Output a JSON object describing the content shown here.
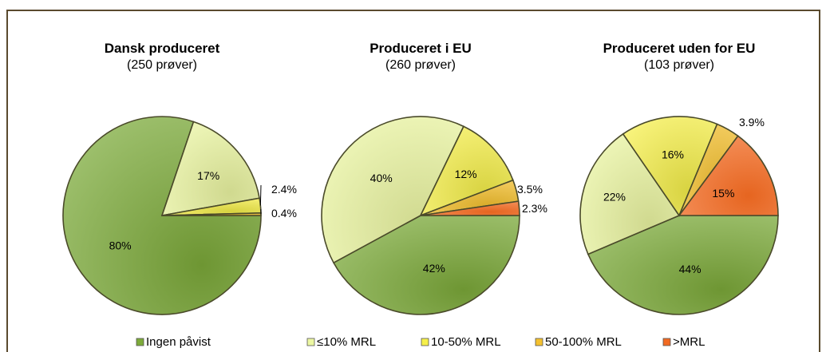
{
  "colors": {
    "frame": "#5a4a2e",
    "slice_stroke": "#4a4a2a",
    "ingen": "#7dab3a",
    "le10": "#ecf7a2",
    "p10_50": "#f6f04a",
    "p50_100": "#f5c12e",
    "gtMRL": "#f26a22"
  },
  "legend": {
    "items": [
      {
        "label": "Ingen påvist",
        "color": "#7dab3a"
      },
      {
        "label": "≤10% MRL",
        "color": "#ecf7a2"
      },
      {
        "label": "10-50% MRL",
        "color": "#f6f04a"
      },
      {
        "label": "50-100% MRL",
        "color": "#f5c12e"
      },
      {
        "label": ">MRL",
        "color": "#f26a22"
      }
    ],
    "placement": "bottom"
  },
  "chart_data": [
    {
      "type": "pie",
      "title": "Dansk produceret",
      "subtitle": "(250 prøver)",
      "categories": [
        "Ingen påvist",
        "≤10% MRL",
        "10-50% MRL",
        "50-100% MRL",
        ">MRL"
      ],
      "values": [
        80,
        17,
        2.4,
        0.4,
        0
      ],
      "labels": [
        "80%",
        "17%",
        "2.4%",
        "0.4%",
        ""
      ]
    },
    {
      "type": "pie",
      "title": "Produceret i EU",
      "subtitle": "(260 prøver)",
      "categories": [
        "Ingen påvist",
        "≤10% MRL",
        "10-50% MRL",
        "50-100% MRL",
        ">MRL"
      ],
      "values": [
        42,
        40,
        12,
        3.5,
        2.3
      ],
      "labels": [
        "42%",
        "40%",
        "12%",
        "3.5%",
        "2.3%"
      ]
    },
    {
      "type": "pie",
      "title": "Produceret uden for EU",
      "subtitle": "(103 prøver)",
      "categories": [
        "Ingen påvist",
        "≤10% MRL",
        "10-50% MRL",
        "50-100% MRL",
        ">MRL"
      ],
      "values": [
        44,
        22,
        16,
        3.9,
        15
      ],
      "labels": [
        "44%",
        "22%",
        "16%",
        "3.9%",
        "15%"
      ]
    }
  ]
}
